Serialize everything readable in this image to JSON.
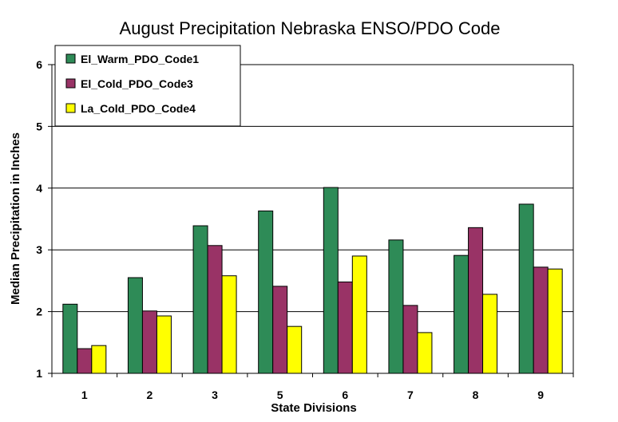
{
  "chart_data": {
    "type": "bar",
    "title": "August Precipitation Nebraska ENSO/PDO Code",
    "xlabel": "State Divisions",
    "ylabel": "Median Precipitation in Inches",
    "categories": [
      "1",
      "2",
      "3",
      "5",
      "6",
      "7",
      "8",
      "9"
    ],
    "ylim": [
      1,
      6
    ],
    "yticks": [
      "1",
      "2",
      "3",
      "4",
      "5",
      "6"
    ],
    "grid": true,
    "legend_position": "top-left",
    "series": [
      {
        "name": "El_Warm_PDO_Code1",
        "color": "#2E8B57",
        "values": [
          2.12,
          2.55,
          3.39,
          3.63,
          4.01,
          3.16,
          2.91,
          3.74
        ]
      },
      {
        "name": "El_Cold_PDO_Code3",
        "color": "#993366",
        "values": [
          1.4,
          2.01,
          3.07,
          2.41,
          2.48,
          2.1,
          3.36,
          2.72
        ]
      },
      {
        "name": "La_Cold_PDO_Code4",
        "color": "#FFFF00",
        "values": [
          1.45,
          1.93,
          2.58,
          1.76,
          2.9,
          1.66,
          2.28,
          2.69
        ]
      }
    ]
  }
}
